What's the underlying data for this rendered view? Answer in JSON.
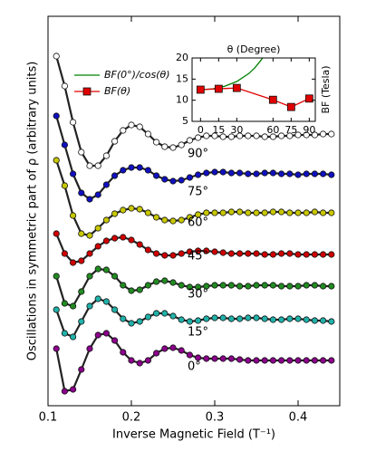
{
  "chart_data": [
    {
      "type": "line",
      "xlabel": "Inverse Magnetic Field (T⁻¹)",
      "ylabel": "Oscillations in symmetric part of ρ (arbitrary units)",
      "x": [
        0.11,
        0.12,
        0.13,
        0.14,
        0.15,
        0.16,
        0.17,
        0.18,
        0.19,
        0.2,
        0.21,
        0.22,
        0.23,
        0.24,
        0.25,
        0.26,
        0.27,
        0.28,
        0.29,
        0.3,
        0.31,
        0.32,
        0.33,
        0.34,
        0.35,
        0.36,
        0.37,
        0.38,
        0.39,
        0.4,
        0.41,
        0.42,
        0.43,
        0.44
      ],
      "xlim": [
        0.1,
        0.45
      ],
      "xticks": [
        0.1,
        0.2,
        0.3,
        0.4
      ],
      "ylim": [
        0,
        430
      ],
      "series": [
        {
          "name": "0°",
          "color": "#8b008b",
          "values": [
            63,
            16,
            18,
            40,
            63,
            78,
            80,
            72,
            59,
            50,
            47,
            50,
            58,
            63,
            64,
            61,
            56,
            53,
            52,
            52,
            52,
            52,
            51,
            50,
            50,
            50,
            50,
            50,
            50,
            50,
            50,
            50,
            50,
            50
          ]
        },
        {
          "name": "15°",
          "color": "#20b2aa",
          "values": [
            106,
            80,
            76,
            93,
            110,
            118,
            115,
            106,
            96,
            91,
            93,
            98,
            102,
            102,
            99,
            95,
            93,
            94,
            96,
            97,
            97,
            96,
            96,
            97,
            97,
            96,
            95,
            95,
            96,
            96,
            95,
            94,
            94,
            93
          ]
        },
        {
          "name": "30°",
          "color": "#228b22",
          "values": [
            143,
            113,
            110,
            126,
            143,
            151,
            150,
            143,
            133,
            127,
            128,
            133,
            137,
            138,
            136,
            133,
            131,
            131,
            132,
            133,
            133,
            133,
            132,
            132,
            133,
            133,
            133,
            132,
            132,
            132,
            133,
            133,
            132,
            132
          ]
        },
        {
          "name": "45°",
          "color": "#d00000",
          "values": [
            190,
            168,
            158,
            160,
            168,
            176,
            182,
            185,
            186,
            183,
            178,
            172,
            168,
            166,
            166,
            168,
            170,
            171,
            171,
            170,
            169,
            168,
            168,
            168,
            168,
            167,
            167,
            168,
            168,
            167,
            167,
            167,
            167,
            167
          ]
        },
        {
          "name": "60°",
          "color": "#c8c800",
          "values": [
            271,
            243,
            210,
            190,
            188,
            196,
            205,
            212,
            216,
            218,
            217,
            213,
            208,
            205,
            204,
            205,
            208,
            211,
            213,
            213,
            213,
            214,
            214,
            213,
            213,
            213,
            214,
            214,
            213,
            213,
            213,
            214,
            213,
            213
          ]
        },
        {
          "name": "75°",
          "color": "#1010c0",
          "values": [
            320,
            288,
            256,
            235,
            228,
            233,
            244,
            254,
            260,
            263,
            263,
            260,
            254,
            250,
            248,
            249,
            252,
            255,
            257,
            258,
            258,
            257,
            257,
            256,
            256,
            257,
            257,
            256,
            256,
            255,
            256,
            256,
            256,
            255
          ]
        },
        {
          "name": "90°",
          "color": "#ffffff",
          "values": [
            386,
            353,
            313,
            280,
            265,
            265,
            276,
            292,
            304,
            310,
            308,
            300,
            291,
            286,
            285,
            288,
            293,
            296,
            298,
            298,
            297,
            297,
            298,
            298,
            298,
            297,
            297,
            298,
            298,
            299,
            299,
            299,
            300,
            300
          ]
        }
      ]
    },
    {
      "type": "line",
      "xlabel": "θ (Degree)",
      "ylabel": "BF (Tesla)",
      "xlim": [
        -7,
        95
      ],
      "xticks": [
        0,
        15,
        30,
        60,
        75,
        90
      ],
      "ylim": [
        5,
        20
      ],
      "yticks": [
        5,
        10,
        15,
        20
      ],
      "series": [
        {
          "name": "BF(0°)/cos(θ)",
          "color": "#008000",
          "x": [
            0,
            10,
            20,
            30,
            40,
            45,
            50,
            52
          ],
          "values": [
            12.5,
            12.69,
            13.3,
            14.43,
            16.32,
            17.68,
            19.45,
            20.3
          ]
        },
        {
          "name": "BF(θ)",
          "color": "#e00000",
          "x": [
            0,
            15,
            30,
            60,
            75,
            90
          ],
          "values": [
            12.5,
            12.7,
            12.9,
            10.1,
            8.4,
            10.4
          ]
        }
      ]
    }
  ]
}
